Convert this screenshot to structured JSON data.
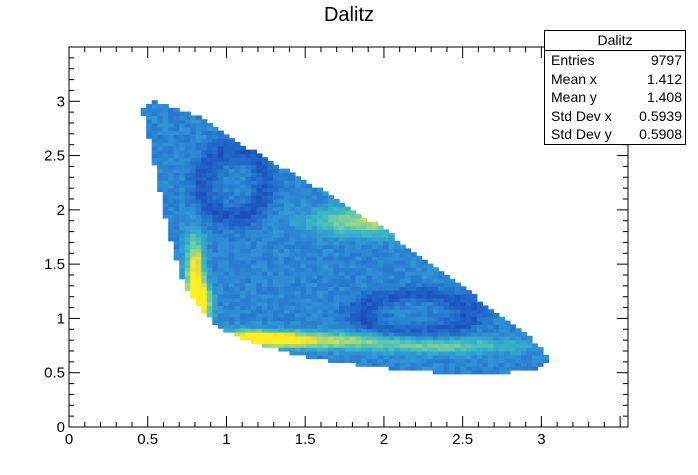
{
  "chart_data": {
    "type": "heatmap",
    "title": "Dalitz",
    "xlabel": "",
    "ylabel": "",
    "xlim": [
      0,
      3.55
    ],
    "ylim": [
      0,
      3.5
    ],
    "x_ticks": [
      "0",
      "0.5",
      "1",
      "1.5",
      "2",
      "2.5",
      "3"
    ],
    "y_ticks": [
      "0",
      "0.5",
      "1",
      "1.5",
      "2",
      "2.5",
      "3"
    ],
    "x_tick_values": [
      0,
      0.5,
      1,
      1.5,
      2,
      2.5,
      3
    ],
    "y_tick_values": [
      0,
      0.5,
      1,
      1.5,
      2,
      2.5,
      3
    ],
    "grid": false,
    "colormap": [
      "#1a3aa6",
      "#1f64c8",
      "#2f8fd6",
      "#3cb9c2",
      "#7fd39a",
      "#e8de3a",
      "#ffee20"
    ],
    "region": {
      "lower_boundary": [
        [
          0.46,
          2.95
        ],
        [
          0.5,
          2.7
        ],
        [
          0.55,
          2.35
        ],
        [
          0.6,
          2.0
        ],
        [
          0.65,
          1.7
        ],
        [
          0.7,
          1.45
        ],
        [
          0.75,
          1.25
        ],
        [
          0.85,
          1.05
        ],
        [
          1.0,
          0.88
        ],
        [
          1.2,
          0.76
        ],
        [
          1.5,
          0.65
        ],
        [
          1.8,
          0.58
        ],
        [
          2.1,
          0.53
        ],
        [
          2.4,
          0.5
        ],
        [
          2.7,
          0.5
        ],
        [
          2.95,
          0.52
        ],
        [
          3.05,
          0.6
        ]
      ],
      "upper_boundary": [
        [
          0.46,
          2.95
        ],
        [
          0.55,
          3.0
        ],
        [
          0.8,
          2.88
        ],
        [
          1.1,
          2.6
        ],
        [
          1.4,
          2.35
        ],
        [
          1.7,
          2.1
        ],
        [
          2.0,
          1.82
        ],
        [
          2.3,
          1.5
        ],
        [
          2.6,
          1.18
        ],
        [
          2.85,
          0.92
        ],
        [
          3.0,
          0.72
        ],
        [
          3.05,
          0.6
        ]
      ]
    },
    "hotspots": [
      {
        "x": 0.82,
        "y": 1.15,
        "level": 1.0,
        "sx": 0.05,
        "sy": 0.12
      },
      {
        "x": 0.8,
        "y": 1.45,
        "level": 0.62,
        "sx": 0.04,
        "sy": 0.22
      },
      {
        "x": 1.2,
        "y": 0.82,
        "level": 0.85,
        "sx": 0.18,
        "sy": 0.045
      },
      {
        "x": 1.6,
        "y": 0.8,
        "level": 0.45,
        "sx": 0.35,
        "sy": 0.05
      },
      {
        "x": 1.9,
        "y": 1.9,
        "level": 0.45,
        "sx": 0.25,
        "sy": 0.09
      },
      {
        "x": 2.4,
        "y": 0.75,
        "level": 0.3,
        "sx": 0.35,
        "sy": 0.05
      }
    ],
    "cold_spots": [
      {
        "x": 1.05,
        "y": 2.25,
        "level": 0.5,
        "sx": 0.22,
        "sy": 0.35
      },
      {
        "x": 2.2,
        "y": 1.05,
        "level": 0.5,
        "sx": 0.38,
        "sy": 0.2
      }
    ]
  },
  "stats": {
    "title": "Dalitz",
    "rows": [
      {
        "label": "Entries",
        "value": "9797"
      },
      {
        "label": "Mean x",
        "value": "1.412"
      },
      {
        "label": "Mean y",
        "value": "1.408"
      },
      {
        "label": "Std Dev x",
        "value": "0.5939"
      },
      {
        "label": "Std Dev y",
        "value": "0.5908"
      }
    ]
  }
}
